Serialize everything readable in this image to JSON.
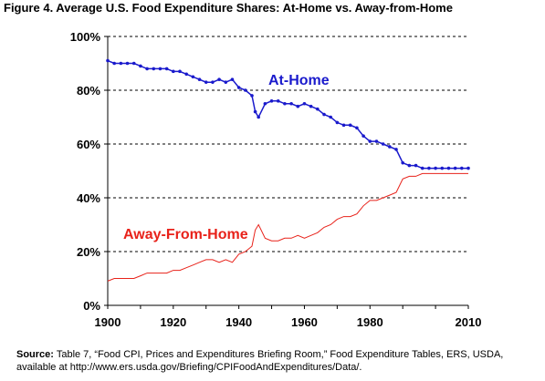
{
  "page": {
    "figure_title": "Figure 4. Average U.S. Food Expenditure Shares: At-Home vs. Away-from-Home",
    "source_label": "Source:",
    "source_text": "Table 7, “Food CPI, Prices and Expenditures Briefing Room,” Food Expenditure Tables, ERS, USDA, available at http://www.ers.usda.gov/Briefing/CPIFoodAndExpenditures/Data/."
  },
  "colors": {
    "at_home": "#1a1acc",
    "away": "#e8221a",
    "grid": "#000000"
  },
  "chart_data": {
    "type": "line",
    "title": "Figure 4. Average U.S. Food Expenditure Shares: At-Home vs. Away-from-Home",
    "xlabel": "",
    "ylabel": "",
    "xlim": [
      1900,
      2010
    ],
    "ylim": [
      0,
      100
    ],
    "x_ticks": [
      "1900",
      "1920",
      "1940",
      "1960",
      "1980",
      "2010"
    ],
    "y_ticks": [
      "0%",
      "20%",
      "40%",
      "60%",
      "80%",
      "100%"
    ],
    "grid": "horizontal dashed",
    "annotations": [
      "At-Home",
      "Away-From-Home"
    ],
    "x": [
      1900,
      1902,
      1904,
      1906,
      1908,
      1910,
      1912,
      1914,
      1916,
      1918,
      1920,
      1922,
      1924,
      1926,
      1928,
      1930,
      1932,
      1934,
      1936,
      1938,
      1940,
      1942,
      1944,
      1945,
      1946,
      1948,
      1950,
      1952,
      1954,
      1956,
      1958,
      1960,
      1962,
      1964,
      1966,
      1968,
      1970,
      1972,
      1974,
      1976,
      1978,
      1980,
      1982,
      1984,
      1986,
      1988,
      1990,
      1992,
      1994,
      1996,
      1998,
      2000,
      2002,
      2004,
      2006,
      2008,
      2010
    ],
    "series": [
      {
        "name": "At-Home",
        "values": [
          91,
          90,
          90,
          90,
          90,
          89,
          88,
          88,
          88,
          88,
          87,
          87,
          86,
          85,
          84,
          83,
          83,
          84,
          83,
          84,
          81,
          80,
          78,
          72,
          70,
          75,
          76,
          76,
          75,
          75,
          74,
          75,
          74,
          73,
          71,
          70,
          68,
          67,
          67,
          66,
          63,
          61,
          61,
          60,
          59,
          58,
          53,
          52,
          52,
          51,
          51,
          51,
          51,
          51,
          51,
          51,
          51
        ]
      },
      {
        "name": "Away-From-Home",
        "values": [
          9,
          10,
          10,
          10,
          10,
          11,
          12,
          12,
          12,
          12,
          13,
          13,
          14,
          15,
          16,
          17,
          17,
          16,
          17,
          16,
          19,
          20,
          22,
          28,
          30,
          25,
          24,
          24,
          25,
          25,
          26,
          25,
          26,
          27,
          29,
          30,
          32,
          33,
          33,
          34,
          37,
          39,
          39,
          40,
          41,
          42,
          47,
          48,
          48,
          49,
          49,
          49,
          49,
          49,
          49,
          49,
          49
        ]
      }
    ]
  }
}
